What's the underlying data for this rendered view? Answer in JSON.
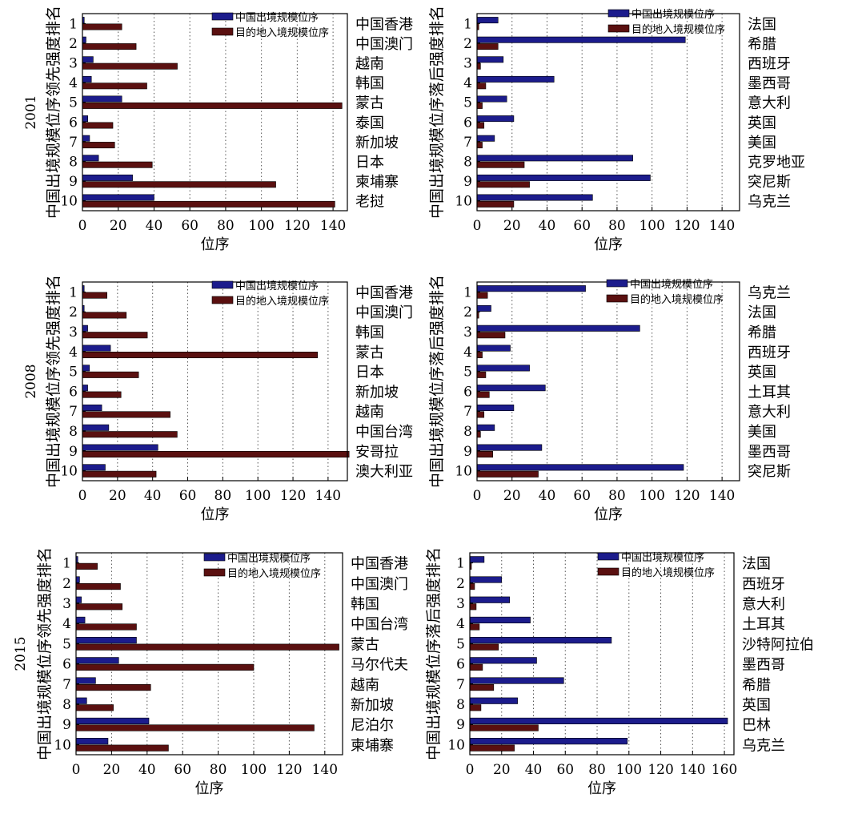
{
  "legend": {
    "series1": "中国出境规模位序",
    "series2": "目的地入境规模位序"
  },
  "colors": {
    "series1": "#1c1c8c",
    "series2": "#5a1010",
    "grid": "#555555"
  },
  "chart_data": [
    {
      "type": "bar",
      "orientation": "horizontal",
      "year_label": "2001",
      "ylabel": "中国出境规模位序领先强度排名",
      "xlabel": "位序",
      "categories": [
        "1",
        "2",
        "3",
        "4",
        "5",
        "6",
        "7",
        "8",
        "9",
        "10"
      ],
      "right_labels": [
        "中国香港",
        "中国澳门",
        "越南",
        "韩国",
        "蒙古",
        "泰国",
        "新加坡",
        "日本",
        "柬埔寨",
        "老挝"
      ],
      "xlim": [
        0,
        148
      ],
      "xticks": [
        0,
        20,
        40,
        60,
        80,
        100,
        120,
        140
      ],
      "legend_position": "top-right",
      "grid": "vertical dotted",
      "series": [
        {
          "name": "中国出境规模位序",
          "values": [
            1,
            2,
            6,
            5,
            22,
            3,
            4,
            9,
            28,
            40
          ]
        },
        {
          "name": "目的地入境规模位序",
          "values": [
            22,
            30,
            53,
            36,
            145,
            17,
            18,
            39,
            108,
            141
          ]
        }
      ]
    },
    {
      "type": "bar",
      "orientation": "horizontal",
      "year_label": "",
      "ylabel": "中国出境规模位序落后强度排名",
      "xlabel": "位序",
      "categories": [
        "1",
        "2",
        "3",
        "4",
        "5",
        "6",
        "7",
        "8",
        "9",
        "10"
      ],
      "right_labels": [
        "法国",
        "希腊",
        "西班牙",
        "墨西哥",
        "意大利",
        "英国",
        "美国",
        "克罗地亚",
        "突尼斯",
        "乌克兰"
      ],
      "xlim": [
        0,
        150
      ],
      "xticks": [
        0,
        20,
        40,
        60,
        80,
        100,
        120,
        140
      ],
      "legend_position": "top-right",
      "grid": "vertical dotted",
      "series": [
        {
          "name": "中国出境规模位序",
          "values": [
            12,
            119,
            15,
            44,
            17,
            21,
            10,
            89,
            99,
            66
          ]
        },
        {
          "name": "目的地入境规模位序",
          "values": [
            1,
            12,
            2,
            5,
            3,
            4,
            3,
            27,
            30,
            21
          ]
        }
      ]
    },
    {
      "type": "bar",
      "orientation": "horizontal",
      "year_label": "2008",
      "ylabel": "中国出境规模位序领先强度排名",
      "xlabel": "位序",
      "categories": [
        "1",
        "2",
        "3",
        "4",
        "5",
        "6",
        "7",
        "8",
        "9",
        "10"
      ],
      "right_labels": [
        "中国香港",
        "中国澳门",
        "韩国",
        "蒙古",
        "日本",
        "新加坡",
        "越南",
        "中国台湾",
        "安哥拉",
        "澳大利亚"
      ],
      "xlim": [
        0,
        151
      ],
      "xticks": [
        0,
        20,
        40,
        60,
        80,
        100,
        120,
        140
      ],
      "legend_position": "top-right",
      "grid": "vertical dotted",
      "series": [
        {
          "name": "中国出境规模位序",
          "values": [
            1,
            1,
            3,
            16,
            4,
            3,
            11,
            15,
            43,
            13
          ]
        },
        {
          "name": "目的地入境规模位序",
          "values": [
            14,
            25,
            37,
            134,
            32,
            22,
            50,
            54,
            152,
            42
          ]
        }
      ]
    },
    {
      "type": "bar",
      "orientation": "horizontal",
      "year_label": "",
      "ylabel": "中国出境规模位序落后强度排名",
      "xlabel": "位序",
      "categories": [
        "1",
        "2",
        "3",
        "4",
        "5",
        "6",
        "7",
        "8",
        "9",
        "10"
      ],
      "right_labels": [
        "乌克兰",
        "法国",
        "希腊",
        "西班牙",
        "英国",
        "土耳其",
        "意大利",
        "美国",
        "墨西哥",
        "突尼斯"
      ],
      "xlim": [
        0,
        150
      ],
      "xticks": [
        0,
        20,
        40,
        60,
        80,
        100,
        120,
        140
      ],
      "legend_position": "top-right",
      "grid": "vertical dotted",
      "series": [
        {
          "name": "中国出境规模位序",
          "values": [
            62,
            8,
            93,
            19,
            30,
            39,
            21,
            10,
            37,
            118
          ]
        },
        {
          "name": "目的地入境规模位序",
          "values": [
            6,
            1,
            16,
            3,
            5,
            7,
            4,
            2,
            9,
            35
          ]
        }
      ]
    },
    {
      "type": "bar",
      "orientation": "horizontal",
      "year_label": "2015",
      "ylabel": "中国出境规模位序领先强度排名",
      "xlabel": "位序",
      "categories": [
        "1",
        "2",
        "3",
        "4",
        "5",
        "6",
        "7",
        "8",
        "9",
        "10"
      ],
      "right_labels": [
        "中国香港",
        "中国澳门",
        "韩国",
        "中国台湾",
        "蒙古",
        "马尔代夫",
        "越南",
        "新加坡",
        "尼泊尔",
        "柬埔寨"
      ],
      "xlim": [
        0,
        150
      ],
      "xticks": [
        0,
        20,
        40,
        60,
        80,
        100,
        120,
        140
      ],
      "legend_position": "top-right",
      "grid": "vertical dotted",
      "series": [
        {
          "name": "中国出境规模位序",
          "values": [
            1,
            2,
            3,
            5,
            34,
            24,
            11,
            6,
            41,
            18
          ]
        },
        {
          "name": "目的地入境规模位序",
          "values": [
            12,
            25,
            26,
            34,
            148,
            100,
            42,
            21,
            134,
            52
          ]
        }
      ]
    },
    {
      "type": "bar",
      "orientation": "horizontal",
      "year_label": "",
      "ylabel": "中国出境规模位序落后强度排名",
      "xlabel": "位序",
      "categories": [
        "1",
        "2",
        "3",
        "4",
        "5",
        "6",
        "7",
        "8",
        "9",
        "10"
      ],
      "right_labels": [
        "法国",
        "西班牙",
        "意大利",
        "土耳其",
        "沙特阿拉伯",
        "墨西哥",
        "希腊",
        "英国",
        "巴林",
        "乌克兰"
      ],
      "xlim": [
        0,
        166
      ],
      "xticks": [
        0,
        20,
        40,
        60,
        80,
        100,
        120,
        140,
        160
      ],
      "legend_position": "top-right",
      "grid": "vertical dotted",
      "series": [
        {
          "name": "中国出境规模位序",
          "values": [
            9,
            20,
            25,
            38,
            89,
            42,
            59,
            30,
            162,
            99
          ]
        },
        {
          "name": "目的地入境规模位序",
          "values": [
            1,
            3,
            4,
            6,
            18,
            8,
            15,
            7,
            43,
            28
          ]
        }
      ]
    }
  ]
}
